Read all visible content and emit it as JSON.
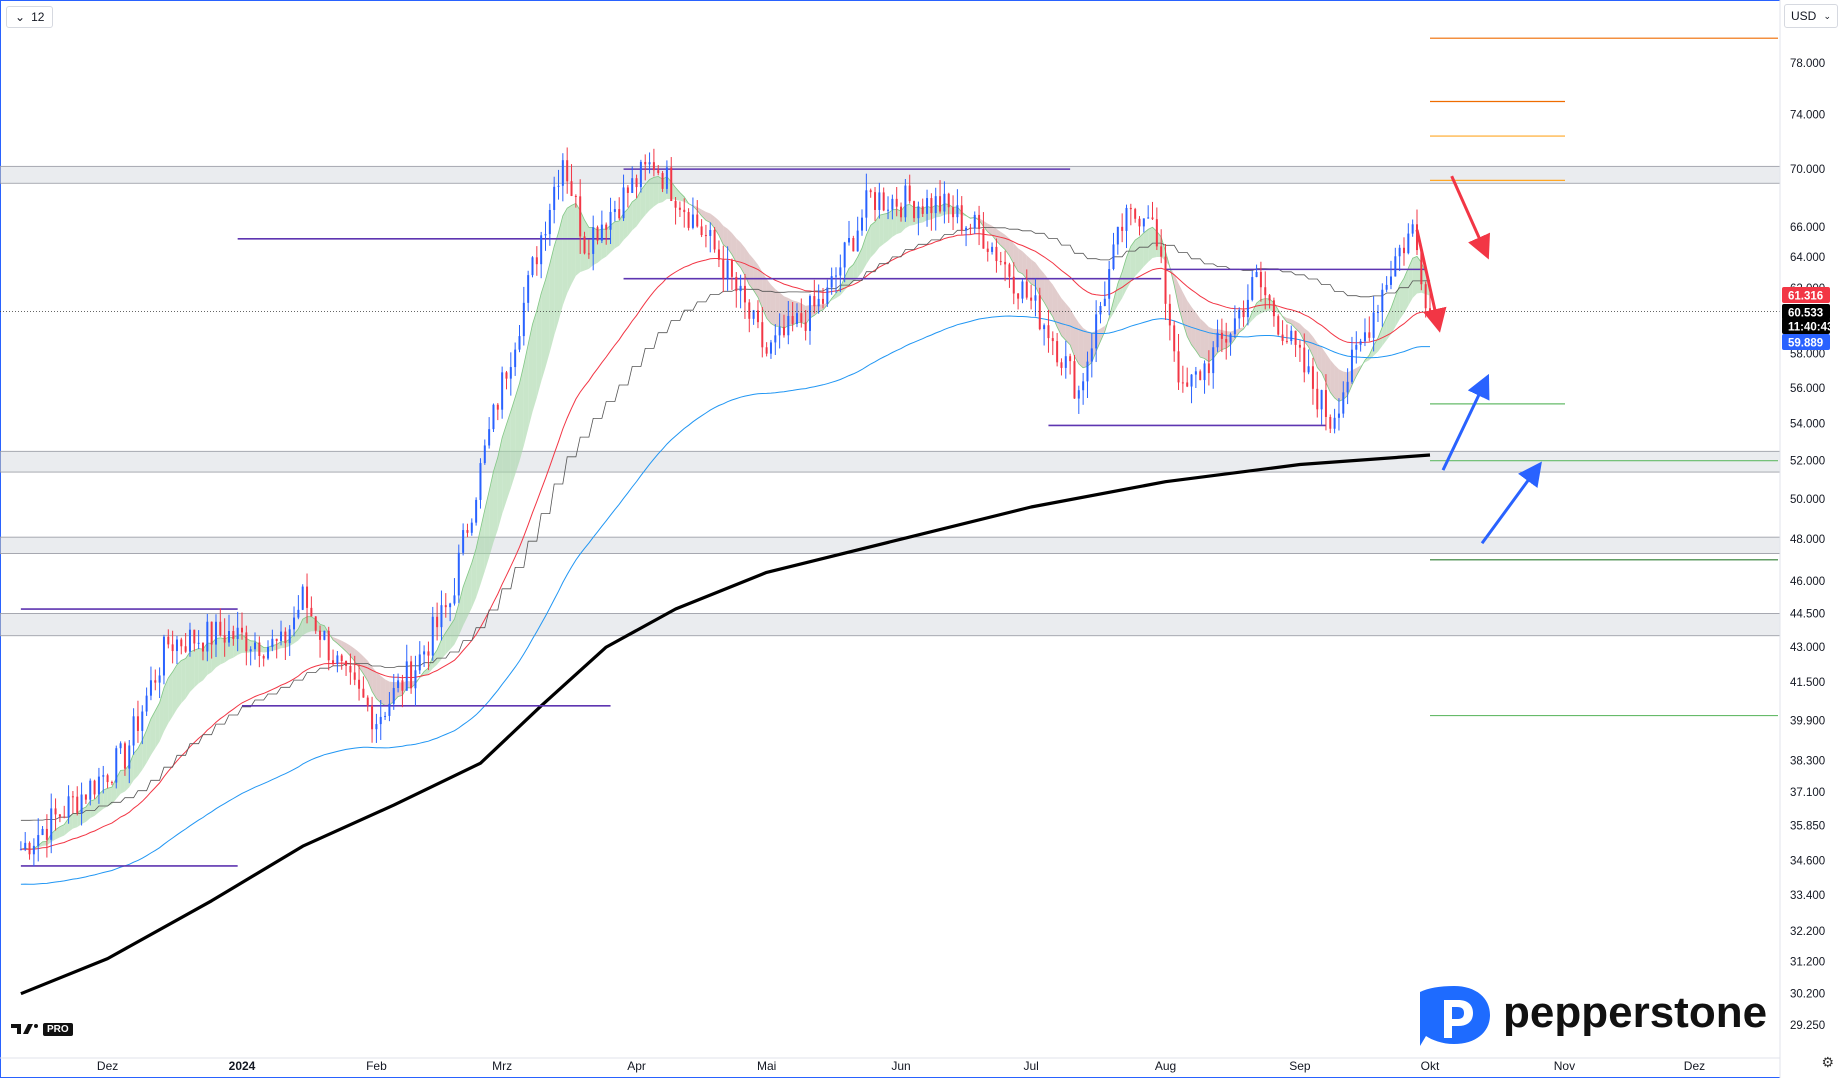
{
  "toolbar": {
    "interval": "12",
    "currency": "USD"
  },
  "logo": {
    "brand": "pepperstone",
    "badge": "PRO"
  },
  "chart_data": {
    "type": "candlestick",
    "ylim": [
      29.25,
      80.5
    ],
    "y_scale": "log",
    "y_ticks": [
      "78.000",
      "74.000",
      "70.000",
      "66.000",
      "64.000",
      "62.000",
      "58.000",
      "56.000",
      "54.000",
      "52.000",
      "50.000",
      "48.000",
      "46.000",
      "44.500",
      "43.000",
      "41.500",
      "39.900",
      "38.300",
      "37.100",
      "35.850",
      "34.600",
      "33.400",
      "32.200",
      "31.200",
      "30.200",
      "29.250"
    ],
    "x_ticks": [
      "Dez",
      "2024",
      "Feb",
      "Mrz",
      "Apr",
      "Mai",
      "Jun",
      "Jul",
      "Aug",
      "Sep",
      "Okt",
      "Nov",
      "Dez"
    ],
    "price_labels": [
      {
        "label": "61.316",
        "value": 61.316,
        "color": "#f23645"
      },
      {
        "label": "60.533",
        "value": 60.533,
        "color": "#000000"
      },
      {
        "label": "11:40:43",
        "value": 60.1,
        "color": "#000000"
      },
      {
        "label": "59.889",
        "value": 59.889,
        "color": "#2962ff"
      }
    ],
    "last_price": 60.533,
    "zones": [
      [
        69.0,
        70.2
      ],
      [
        51.4,
        52.5
      ],
      [
        47.3,
        48.1
      ],
      [
        43.5,
        44.5
      ]
    ],
    "resistance_lines": [
      {
        "value": 65.2,
        "x0": "2023-12-31",
        "x1": "2024-03-26"
      },
      {
        "value": 62.6,
        "x0": "2024-03-29",
        "x1": "2024-07-31"
      },
      {
        "value": 70.0,
        "x0": "2024-03-29",
        "x1": "2024-07-10"
      },
      {
        "value": 63.2,
        "x0": "2024-08-01",
        "x1": "2024-09-30"
      },
      {
        "value": 53.9,
        "x0": "2024-07-05",
        "x1": "2024-09-07"
      },
      {
        "value": 44.7,
        "x0": "2023-11-11",
        "x1": "2023-12-31"
      },
      {
        "value": 40.5,
        "x0": "2024-01-01",
        "x1": "2024-03-26"
      },
      {
        "value": 34.4,
        "x0": "2023-11-11",
        "x1": "2023-12-31"
      }
    ],
    "target_lines": [
      {
        "value": 80.0,
        "color": "#ef6c00"
      },
      {
        "value": 75.0,
        "color": "#ef6c00"
      },
      {
        "value": 72.4,
        "color": "#ffa726"
      },
      {
        "value": 69.2,
        "color": "#ffa726"
      },
      {
        "value": 55.1,
        "color": "#66bb6a"
      },
      {
        "value": 52.0,
        "color": "#66bb6a"
      },
      {
        "value": 47.0,
        "color": "#2e7d32"
      },
      {
        "value": 40.1,
        "color": "#66bb6a"
      }
    ],
    "ma200": [
      {
        "d": "2023-11-11",
        "v": 30.2
      },
      {
        "d": "2023-12-01",
        "v": 31.3
      },
      {
        "d": "2023-12-25",
        "v": 33.2
      },
      {
        "d": "2024-01-15",
        "v": 35.1
      },
      {
        "d": "2024-02-05",
        "v": 36.6
      },
      {
        "d": "2024-02-25",
        "v": 38.2
      },
      {
        "d": "2024-03-10",
        "v": 40.5
      },
      {
        "d": "2024-03-25",
        "v": 43.0
      },
      {
        "d": "2024-04-10",
        "v": 44.7
      },
      {
        "d": "2024-05-01",
        "v": 46.4
      },
      {
        "d": "2024-06-01",
        "v": 48.0
      },
      {
        "d": "2024-07-01",
        "v": 49.6
      },
      {
        "d": "2024-08-01",
        "v": 50.9
      },
      {
        "d": "2024-09-01",
        "v": 51.8
      },
      {
        "d": "2024-10-01",
        "v": 52.3
      }
    ],
    "candles": {
      "start": "2023-11-11",
      "end": "2024-10-01",
      "anchors": [
        {
          "d": "2023-11-11",
          "v": 35.0
        },
        {
          "d": "2023-11-25",
          "v": 37.0
        },
        {
          "d": "2023-12-05",
          "v": 38.5
        },
        {
          "d": "2023-12-15",
          "v": 43.2
        },
        {
          "d": "2023-12-28",
          "v": 43.6
        },
        {
          "d": "2024-01-10",
          "v": 43.0
        },
        {
          "d": "2024-01-15",
          "v": 45.2
        },
        {
          "d": "2024-01-25",
          "v": 41.5
        },
        {
          "d": "2024-02-01",
          "v": 40.0
        },
        {
          "d": "2024-02-10",
          "v": 42.2
        },
        {
          "d": "2024-02-18",
          "v": 45.0
        },
        {
          "d": "2024-02-25",
          "v": 51.5
        },
        {
          "d": "2024-03-06",
          "v": 61.0
        },
        {
          "d": "2024-03-15",
          "v": 71.0
        },
        {
          "d": "2024-03-20",
          "v": 65.0
        },
        {
          "d": "2024-04-05",
          "v": 70.5
        },
        {
          "d": "2024-04-20",
          "v": 64.0
        },
        {
          "d": "2024-05-01",
          "v": 58.0
        },
        {
          "d": "2024-05-15",
          "v": 61.5
        },
        {
          "d": "2024-05-25",
          "v": 68.0
        },
        {
          "d": "2024-06-10",
          "v": 67.5
        },
        {
          "d": "2024-06-20",
          "v": 65.5
        },
        {
          "d": "2024-07-05",
          "v": 59.5
        },
        {
          "d": "2024-07-12",
          "v": 55.8
        },
        {
          "d": "2024-07-22",
          "v": 66.0
        },
        {
          "d": "2024-07-28",
          "v": 67.5
        },
        {
          "d": "2024-08-05",
          "v": 55.5
        },
        {
          "d": "2024-08-15",
          "v": 59.0
        },
        {
          "d": "2024-08-22",
          "v": 62.5
        },
        {
          "d": "2024-09-02",
          "v": 57.0
        },
        {
          "d": "2024-09-08",
          "v": 54.2
        },
        {
          "d": "2024-09-15",
          "v": 58.5
        },
        {
          "d": "2024-09-23",
          "v": 64.0
        },
        {
          "d": "2024-09-27",
          "v": 65.8
        },
        {
          "d": "2024-10-01",
          "v": 60.5
        }
      ]
    },
    "annotations": [
      {
        "type": "arrow",
        "color": "#f23645",
        "from": {
          "d": "2024-10-06",
          "v": 69.5
        },
        "to": {
          "d": "2024-10-14",
          "v": 64.2
        }
      },
      {
        "type": "arrow",
        "color": "#f23645",
        "from": {
          "d": "2024-09-28",
          "v": 65.8
        },
        "to": {
          "d": "2024-10-03",
          "v": 59.6
        }
      },
      {
        "type": "arrow",
        "color": "#2962ff",
        "from": {
          "d": "2024-10-04",
          "v": 51.5
        },
        "to": {
          "d": "2024-10-14",
          "v": 56.5
        }
      },
      {
        "type": "arrow",
        "color": "#2962ff",
        "from": {
          "d": "2024-10-13",
          "v": 47.8
        },
        "to": {
          "d": "2024-10-26",
          "v": 51.7
        }
      }
    ]
  }
}
